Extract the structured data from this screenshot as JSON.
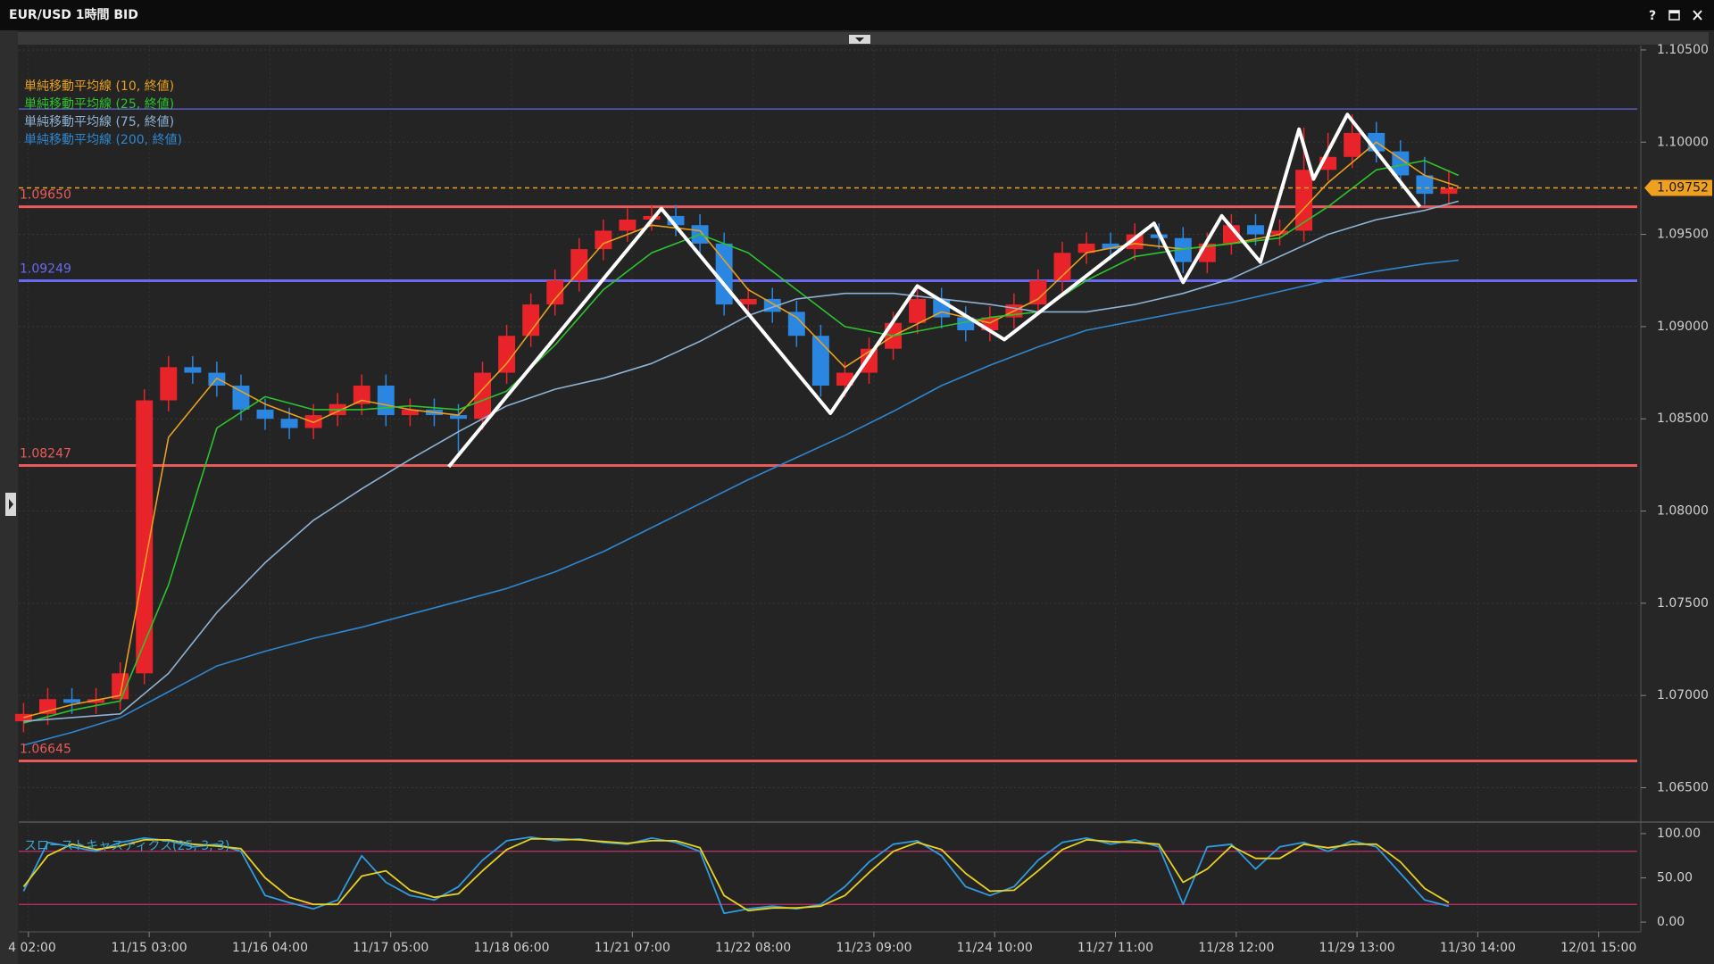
{
  "toolbar": {
    "title": "EUR/USD 1時間 BID",
    "help": "?"
  },
  "chart_data": [
    {
      "type": "candlestick",
      "up_color": "#e8242a",
      "down_color": "#2a86e0",
      "xlim": [
        -1,
        334
      ],
      "ylim": [
        1.06328,
        1.10524
      ],
      "yticks": [
        {
          "value": 1.105,
          "label": "1.10500"
        },
        {
          "value": 1.1,
          "label": "1.10000"
        },
        {
          "value": 1.095,
          "label": "1.09500"
        },
        {
          "value": 1.09,
          "label": "1.09000"
        },
        {
          "value": 1.085,
          "label": "1.08500"
        },
        {
          "value": 1.08,
          "label": "1.08000"
        },
        {
          "value": 1.075,
          "label": "1.07500"
        },
        {
          "value": 1.07,
          "label": "1.07000"
        },
        {
          "value": 1.065,
          "label": "1.06500"
        }
      ],
      "grid": true,
      "x": [
        0,
        5,
        10,
        15,
        20,
        25,
        30,
        35,
        40,
        45,
        50,
        55,
        60,
        65,
        70,
        75,
        80,
        85,
        90,
        95,
        100,
        105,
        110,
        115,
        120,
        125,
        130,
        135,
        140,
        145,
        150,
        155,
        160,
        165,
        170,
        175,
        180,
        185,
        190,
        195,
        200,
        205,
        210,
        215,
        220,
        225,
        230,
        235,
        240,
        245,
        250,
        255,
        260,
        265,
        270,
        275,
        280,
        285,
        290,
        295
      ],
      "ohlc": [
        [
          1.0686,
          1.0696,
          1.068,
          1.069
        ],
        [
          1.069,
          1.0704,
          1.0684,
          1.0698
        ],
        [
          1.0698,
          1.0704,
          1.069,
          1.0696
        ],
        [
          1.0696,
          1.0704,
          1.069,
          1.0698
        ],
        [
          1.0698,
          1.0718,
          1.0692,
          1.0712
        ],
        [
          1.0712,
          1.0866,
          1.0706,
          1.086
        ],
        [
          1.086,
          1.0884,
          1.0854,
          1.0878
        ],
        [
          1.0878,
          1.0884,
          1.0869,
          1.0875
        ],
        [
          1.0875,
          1.0881,
          1.0862,
          1.0868
        ],
        [
          1.0868,
          1.0874,
          1.0849,
          1.0855
        ],
        [
          1.0855,
          1.0861,
          1.0844,
          1.085
        ],
        [
          1.085,
          1.0856,
          1.0839,
          1.0845
        ],
        [
          1.0845,
          1.0858,
          1.0839,
          1.0852
        ],
        [
          1.0852,
          1.0864,
          1.0846,
          1.0858
        ],
        [
          1.0858,
          1.0874,
          1.0852,
          1.0868
        ],
        [
          1.0868,
          1.0874,
          1.0846,
          1.0852
        ],
        [
          1.0852,
          1.0861,
          1.0846,
          1.0855
        ],
        [
          1.0855,
          1.0861,
          1.0846,
          1.0852
        ],
        [
          1.0852,
          1.0858,
          1.0832,
          1.085
        ],
        [
          1.085,
          1.0881,
          1.0844,
          1.0875
        ],
        [
          1.0875,
          1.0901,
          1.0869,
          1.0895
        ],
        [
          1.0895,
          1.0918,
          1.0889,
          1.0912
        ],
        [
          1.0912,
          1.0931,
          1.0906,
          1.0925
        ],
        [
          1.0925,
          1.0948,
          1.0919,
          1.0942
        ],
        [
          1.0942,
          1.0958,
          1.0936,
          1.0952
        ],
        [
          1.0952,
          1.0964,
          1.0946,
          1.0958
        ],
        [
          1.0958,
          1.0966,
          1.0952,
          1.096
        ],
        [
          1.096,
          1.0966,
          1.0949,
          1.0955
        ],
        [
          1.0955,
          1.0961,
          1.0939,
          1.0945
        ],
        [
          1.0945,
          1.0951,
          1.0906,
          1.0912
        ],
        [
          1.0912,
          1.0921,
          1.0906,
          1.0915
        ],
        [
          1.0915,
          1.0921,
          1.0902,
          1.0908
        ],
        [
          1.0908,
          1.0914,
          1.0889,
          1.0895
        ],
        [
          1.0895,
          1.0901,
          1.0862,
          1.0868
        ],
        [
          1.0868,
          1.0881,
          1.0862,
          1.0875
        ],
        [
          1.0875,
          1.0894,
          1.0869,
          1.0888
        ],
        [
          1.0888,
          1.0908,
          1.0882,
          1.0902
        ],
        [
          1.0902,
          1.0921,
          1.0896,
          1.0915
        ],
        [
          1.0915,
          1.0921,
          1.0899,
          1.0905
        ],
        [
          1.0905,
          1.0911,
          1.0892,
          1.0898
        ],
        [
          1.0898,
          1.0911,
          1.0892,
          1.0905
        ],
        [
          1.0905,
          1.0918,
          1.0899,
          1.0912
        ],
        [
          1.0912,
          1.0931,
          1.0906,
          1.0925
        ],
        [
          1.0925,
          1.0946,
          1.0919,
          1.094
        ],
        [
          1.094,
          1.0951,
          1.0934,
          1.0945
        ],
        [
          1.0945,
          1.0951,
          1.0936,
          1.0942
        ],
        [
          1.0942,
          1.0956,
          1.0936,
          1.095
        ],
        [
          1.095,
          1.0956,
          1.0942,
          1.0948
        ],
        [
          1.0948,
          1.0954,
          1.0929,
          1.0935
        ],
        [
          1.0935,
          1.0951,
          1.0929,
          1.0945
        ],
        [
          1.0945,
          1.0961,
          1.0939,
          1.0955
        ],
        [
          1.0955,
          1.0961,
          1.0944,
          1.095
        ],
        [
          1.095,
          1.0958,
          1.0944,
          1.0952
        ],
        [
          1.0952,
          1.1008,
          1.0946,
          1.0985
        ],
        [
          1.0985,
          1.1005,
          1.0979,
          1.0992
        ],
        [
          1.0992,
          1.1015,
          1.0986,
          1.1005
        ],
        [
          1.1005,
          1.1011,
          1.0989,
          1.0995
        ],
        [
          1.0995,
          1.1001,
          1.0976,
          1.0982
        ],
        [
          1.0982,
          1.0992,
          1.0966,
          1.0972
        ],
        [
          1.0972,
          1.0985,
          1.0966,
          1.0975
        ]
      ],
      "series": [
        {
          "name": "単純移動平均線 (10, 終値)",
          "color": "#e8a020",
          "x": [
            0,
            10,
            20,
            30,
            40,
            50,
            60,
            70,
            80,
            90,
            100,
            110,
            120,
            130,
            140,
            150,
            160,
            170,
            180,
            190,
            200,
            210,
            220,
            230,
            240,
            250,
            260,
            270,
            280,
            290,
            297
          ],
          "values": [
            1.0688,
            1.0695,
            1.07,
            1.084,
            1.0872,
            1.0858,
            1.0848,
            1.086,
            1.0855,
            1.0852,
            1.088,
            1.0915,
            1.0945,
            1.0955,
            1.0952,
            1.092,
            1.0905,
            1.0878,
            1.0895,
            1.0908,
            1.0902,
            1.0915,
            1.094,
            1.0945,
            1.0942,
            1.0945,
            1.095,
            1.0978,
            1.1,
            1.0982,
            1.0976
          ]
        },
        {
          "name": "単純移動平均線 (25, 終値)",
          "color": "#2cc42c",
          "x": [
            0,
            10,
            20,
            30,
            40,
            50,
            60,
            70,
            80,
            90,
            100,
            110,
            120,
            130,
            140,
            150,
            160,
            170,
            180,
            190,
            200,
            210,
            220,
            230,
            240,
            250,
            260,
            270,
            280,
            290,
            297
          ],
          "values": [
            1.0685,
            1.0692,
            1.0697,
            1.076,
            1.0845,
            1.0862,
            1.0855,
            1.0855,
            1.0857,
            1.0855,
            1.0865,
            1.089,
            1.092,
            1.094,
            1.095,
            1.094,
            1.092,
            1.09,
            1.0895,
            1.09,
            1.0905,
            1.0908,
            1.0925,
            1.0938,
            1.0942,
            1.0945,
            1.0948,
            1.0965,
            1.0985,
            1.099,
            1.0982
          ]
        },
        {
          "name": "単純移動平均線 (75, 終値)",
          "color": "#8db2d4",
          "x": [
            0,
            10,
            20,
            30,
            40,
            50,
            60,
            70,
            80,
            90,
            100,
            110,
            120,
            130,
            140,
            150,
            160,
            170,
            180,
            190,
            200,
            210,
            220,
            230,
            240,
            250,
            260,
            270,
            280,
            290,
            297
          ],
          "values": [
            1.0686,
            1.0688,
            1.069,
            1.0712,
            1.0745,
            1.0772,
            1.0795,
            1.0812,
            1.0828,
            1.0843,
            1.0857,
            1.0866,
            1.0872,
            1.088,
            1.0892,
            1.0906,
            1.0915,
            1.0918,
            1.0918,
            1.0915,
            1.0912,
            1.0908,
            1.0908,
            1.0912,
            1.0918,
            1.0926,
            1.0938,
            1.095,
            1.0958,
            1.0963,
            1.0968
          ]
        },
        {
          "name": "単純移動平均線 (200, 終値)",
          "color": "#2f86d0",
          "x": [
            0,
            10,
            20,
            30,
            40,
            50,
            60,
            70,
            80,
            90,
            100,
            110,
            120,
            130,
            140,
            150,
            160,
            170,
            180,
            190,
            200,
            210,
            220,
            230,
            240,
            250,
            260,
            270,
            280,
            290,
            297
          ],
          "values": [
            1.0673,
            1.068,
            1.0688,
            1.0702,
            1.0716,
            1.0724,
            1.0731,
            1.0737,
            1.0744,
            1.0751,
            1.0758,
            1.0767,
            1.0778,
            1.0791,
            1.0804,
            1.0817,
            1.0829,
            1.0841,
            1.0854,
            1.0868,
            1.0879,
            1.0889,
            1.0898,
            1.0903,
            1.0908,
            1.0913,
            1.0919,
            1.0925,
            1.093,
            1.0934,
            1.0936
          ]
        }
      ],
      "hlines": [
        {
          "value": 1.1018,
          "color": "#5858c8"
        },
        {
          "value": 1.0965,
          "label": "1.09650",
          "color": "#ea5a5a"
        },
        {
          "value": 1.09249,
          "label": "1.09249",
          "color": "#6a6af0"
        },
        {
          "value": 1.08247,
          "label": "1.08247",
          "color": "#ea5a5a"
        },
        {
          "value": 1.06645,
          "label": "1.06645",
          "color": "#ea5a5a"
        }
      ],
      "last_price": {
        "value": 1.09752,
        "label": "1.09752",
        "color": "#f0a020"
      },
      "trendline": {
        "color": "#ffffff",
        "x": [
          88,
          132,
          167,
          185,
          203,
          234,
          240,
          248,
          256,
          264,
          267,
          274,
          289
        ],
        "values": [
          1.0824,
          1.0964,
          1.0853,
          1.0922,
          1.0893,
          1.0956,
          1.0924,
          1.096,
          1.0935,
          1.1007,
          1.098,
          1.1015,
          1.0965
        ]
      }
    },
    {
      "type": "line",
      "label": "スローストキャスティクス(25, 3, 3)",
      "xlim": [
        -1,
        334
      ],
      "ylim": [
        -9,
        109
      ],
      "yticks": [
        {
          "value": 100,
          "label": "100.00"
        },
        {
          "value": 50,
          "label": "50.00"
        },
        {
          "value": 0,
          "label": "0.00"
        }
      ],
      "levels": [
        80,
        20
      ],
      "level_color": "#c2306c",
      "xticks": [
        {
          "value": 1,
          "label": "4 02:00"
        },
        {
          "value": 26,
          "label": "11/15 03:00"
        },
        {
          "value": 51,
          "label": "11/16 04:00"
        },
        {
          "value": 76,
          "label": "11/17 05:00"
        },
        {
          "value": 101,
          "label": "11/18 06:00"
        },
        {
          "value": 126,
          "label": "11/21 07:00"
        },
        {
          "value": 151,
          "label": "11/22 08:00"
        },
        {
          "value": 176,
          "label": "11/23 09:00"
        },
        {
          "value": 201,
          "label": "11/24 10:00"
        },
        {
          "value": 226,
          "label": "11/27 11:00"
        },
        {
          "value": 251,
          "label": "11/28 12:00"
        },
        {
          "value": 276,
          "label": "11/29 13:00"
        },
        {
          "value": 301,
          "label": "11/30 14:00"
        },
        {
          "value": 326,
          "label": "12/01 15:00"
        }
      ],
      "x": [
        0,
        5,
        10,
        15,
        20,
        25,
        30,
        35,
        40,
        45,
        50,
        55,
        60,
        65,
        70,
        75,
        80,
        85,
        90,
        95,
        100,
        105,
        110,
        115,
        120,
        125,
        130,
        135,
        140,
        145,
        150,
        155,
        160,
        165,
        170,
        175,
        180,
        185,
        190,
        195,
        200,
        205,
        210,
        215,
        220,
        225,
        230,
        235,
        240,
        245,
        250,
        255,
        260,
        265,
        270,
        275,
        280,
        285,
        290,
        295
      ],
      "series": [
        {
          "color": "#2f9be0",
          "values": [
            35,
            90,
            85,
            80,
            90,
            95,
            92,
            85,
            88,
            80,
            30,
            22,
            15,
            25,
            75,
            45,
            30,
            25,
            40,
            70,
            92,
            96,
            92,
            94,
            90,
            88,
            95,
            90,
            80,
            10,
            15,
            18,
            15,
            20,
            40,
            68,
            88,
            92,
            75,
            40,
            30,
            40,
            70,
            90,
            95,
            88,
            93,
            85,
            20,
            85,
            88,
            60,
            85,
            90,
            80,
            92,
            85,
            55,
            25,
            18
          ]
        },
        {
          "color": "#e8d020",
          "values": [
            40,
            75,
            88,
            82,
            86,
            93,
            93,
            88,
            86,
            83,
            50,
            28,
            20,
            20,
            52,
            58,
            36,
            28,
            32,
            58,
            82,
            94,
            94,
            93,
            91,
            89,
            92,
            92,
            84,
            30,
            13,
            16,
            16,
            18,
            30,
            56,
            80,
            90,
            82,
            55,
            35,
            36,
            58,
            82,
            93,
            91,
            90,
            88,
            45,
            60,
            86,
            72,
            72,
            88,
            84,
            88,
            88,
            68,
            38,
            22
          ]
        }
      ]
    }
  ]
}
